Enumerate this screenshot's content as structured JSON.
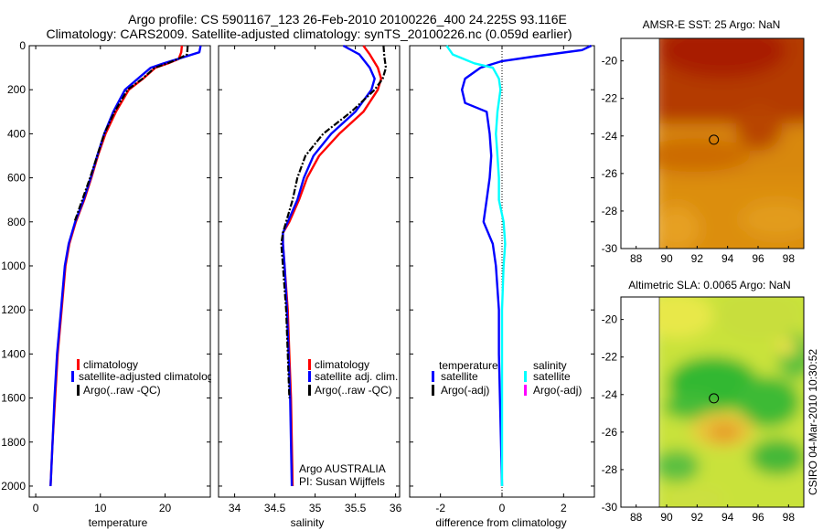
{
  "header": {
    "line1": "Argo profile: CS 5901167_123 26-Feb-2010 20100226_400 24.225S 93.116E",
    "line2": "Climatology: CARS2009. Satellite-adjusted climatology: synTS_20100226.nc (0.059d earlier)"
  },
  "footer": {
    "credit": "CSIRO 04-Mar-2010 10:30:52"
  },
  "colors": {
    "climatology": "#ff0000",
    "satellite": "#0000ff",
    "argo": "#000000",
    "salinity_satellite": "#00ffff",
    "salinity_argo": "#ff00ff"
  },
  "chart_data": [
    {
      "type": "line",
      "panel": "temperature",
      "xlabel": "temperature",
      "ylabel": "",
      "xlim": [
        -1,
        27
      ],
      "ylim": [
        2050,
        0
      ],
      "xticks": [
        0,
        10,
        20
      ],
      "yticks": [
        0,
        200,
        400,
        600,
        800,
        1000,
        1200,
        1400,
        1600,
        1800,
        2000
      ],
      "legend": [
        "climatology",
        "satellite-adjusted climatology",
        "Argo(..raw -QC)"
      ],
      "series": [
        {
          "name": "climatology",
          "color": "#ff0000",
          "points": [
            [
              22.6,
              0
            ],
            [
              22.5,
              30
            ],
            [
              22.1,
              60
            ],
            [
              20.5,
              80
            ],
            [
              18.5,
              100
            ],
            [
              16.6,
              150
            ],
            [
              14.4,
              200
            ],
            [
              12.4,
              300
            ],
            [
              10.8,
              400
            ],
            [
              9.6,
              500
            ],
            [
              8.6,
              600
            ],
            [
              7.5,
              700
            ],
            [
              6.2,
              800
            ],
            [
              5.2,
              900
            ],
            [
              4.6,
              1000
            ],
            [
              4.0,
              1200
            ],
            [
              3.4,
              1400
            ],
            [
              3.0,
              1600
            ],
            [
              2.6,
              1800
            ],
            [
              2.3,
              2000
            ]
          ]
        },
        {
          "name": "satellite-adjusted climatology",
          "color": "#0000ff",
          "points": [
            [
              25.5,
              0
            ],
            [
              25.3,
              30
            ],
            [
              22.0,
              60
            ],
            [
              19.8,
              80
            ],
            [
              17.8,
              100
            ],
            [
              15.8,
              150
            ],
            [
              13.8,
              200
            ],
            [
              12.0,
              300
            ],
            [
              10.6,
              400
            ],
            [
              9.5,
              500
            ],
            [
              8.5,
              600
            ],
            [
              7.4,
              700
            ],
            [
              6.1,
              800
            ],
            [
              5.1,
              900
            ],
            [
              4.5,
              1000
            ],
            [
              3.9,
              1200
            ],
            [
              3.3,
              1400
            ],
            [
              2.9,
              1600
            ],
            [
              2.6,
              1800
            ],
            [
              2.3,
              2000
            ]
          ]
        },
        {
          "name": "Argo(..raw -QC)",
          "color": "#000000",
          "dashed": true,
          "points": [
            [
              23.5,
              0
            ],
            [
              23.4,
              40
            ],
            [
              22.0,
              60
            ],
            [
              20.4,
              80
            ],
            [
              18.4,
              100
            ],
            [
              16.5,
              150
            ],
            [
              14.2,
              200
            ],
            [
              12.2,
              300
            ],
            [
              10.6,
              400
            ],
            [
              9.5,
              500
            ],
            [
              8.4,
              600
            ],
            [
              7.2,
              700
            ],
            [
              6.0,
              800
            ]
          ]
        }
      ]
    },
    {
      "type": "line",
      "panel": "salinity",
      "xlabel": "salinity",
      "ylabel": "",
      "xlim": [
        33.8,
        36.05
      ],
      "ylim": [
        2050,
        0
      ],
      "xticks": [
        34,
        34.5,
        35,
        35.5,
        36
      ],
      "legend": [
        "climatology",
        "satellite adj. clim.",
        "Argo(..raw -QC)"
      ],
      "annotation": [
        "Argo AUSTRALIA",
        "PI: Susan Wijffels"
      ],
      "series": [
        {
          "name": "climatology",
          "color": "#ff0000",
          "points": [
            [
              35.6,
              0
            ],
            [
              35.68,
              40
            ],
            [
              35.78,
              100
            ],
            [
              35.82,
              150
            ],
            [
              35.78,
              200
            ],
            [
              35.6,
              300
            ],
            [
              35.3,
              400
            ],
            [
              35.05,
              500
            ],
            [
              34.9,
              600
            ],
            [
              34.8,
              700
            ],
            [
              34.68,
              800
            ],
            [
              34.6,
              850
            ],
            [
              34.6,
              900
            ],
            [
              34.62,
              1000
            ],
            [
              34.66,
              1200
            ],
            [
              34.68,
              1400
            ],
            [
              34.7,
              1600
            ],
            [
              34.71,
              1800
            ],
            [
              34.72,
              2000
            ]
          ]
        },
        {
          "name": "satellite adj. clim.",
          "color": "#0000ff",
          "points": [
            [
              35.35,
              0
            ],
            [
              35.55,
              40
            ],
            [
              35.68,
              100
            ],
            [
              35.74,
              150
            ],
            [
              35.7,
              200
            ],
            [
              35.5,
              300
            ],
            [
              35.2,
              400
            ],
            [
              34.98,
              500
            ],
            [
              34.86,
              600
            ],
            [
              34.78,
              700
            ],
            [
              34.66,
              800
            ],
            [
              34.6,
              850
            ],
            [
              34.6,
              900
            ],
            [
              34.62,
              1000
            ],
            [
              34.65,
              1200
            ],
            [
              34.67,
              1400
            ],
            [
              34.69,
              1600
            ],
            [
              34.7,
              1800
            ],
            [
              34.71,
              2000
            ]
          ]
        },
        {
          "name": "Argo(..raw -QC)",
          "color": "#000000",
          "dashed": true,
          "points": [
            [
              35.85,
              0
            ],
            [
              35.86,
              50
            ],
            [
              35.88,
              100
            ],
            [
              35.84,
              150
            ],
            [
              35.74,
              200
            ],
            [
              35.45,
              300
            ],
            [
              35.1,
              400
            ],
            [
              34.88,
              500
            ],
            [
              34.78,
              600
            ],
            [
              34.72,
              700
            ],
            [
              34.64,
              800
            ],
            [
              34.6,
              850
            ],
            [
              34.58,
              900
            ],
            [
              34.6,
              1000
            ],
            [
              34.64,
              1200
            ],
            [
              34.66,
              1400
            ],
            [
              34.68,
              1600
            ]
          ]
        }
      ]
    },
    {
      "type": "line",
      "panel": "difference",
      "xlabel": "difference from climatology",
      "ylabel": "",
      "xlim": [
        -3,
        3
      ],
      "ylim": [
        2050,
        0
      ],
      "xticks": [
        -2,
        0,
        2
      ],
      "legend_groups": [
        {
          "title": "temperature",
          "entries": [
            "satellite",
            "Argo(-adj)"
          ]
        },
        {
          "title": "salinity",
          "entries": [
            "satellite",
            "Argo(-adj)"
          ]
        }
      ],
      "series": [
        {
          "name": "temperature satellite",
          "color": "#0000ff",
          "points": [
            [
              2.9,
              0
            ],
            [
              2.6,
              20
            ],
            [
              1.0,
              50
            ],
            [
              0.0,
              70
            ],
            [
              -0.7,
              100
            ],
            [
              -1.2,
              150
            ],
            [
              -1.3,
              200
            ],
            [
              -1.2,
              260
            ],
            [
              -0.5,
              300
            ],
            [
              -0.4,
              400
            ],
            [
              -0.35,
              500
            ],
            [
              -0.4,
              600
            ],
            [
              -0.5,
              700
            ],
            [
              -0.6,
              800
            ],
            [
              -0.3,
              900
            ],
            [
              -0.2,
              1000
            ],
            [
              -0.1,
              1200
            ],
            [
              -0.1,
              1400
            ],
            [
              0,
              2000
            ]
          ]
        },
        {
          "name": "salinity satellite",
          "color": "#00ffff",
          "points": [
            [
              -1.8,
              0
            ],
            [
              -1.6,
              40
            ],
            [
              -0.9,
              80
            ],
            [
              -0.3,
              100
            ],
            [
              -0.1,
              150
            ],
            [
              -0.05,
              200
            ],
            [
              -0.15,
              300
            ],
            [
              -0.2,
              400
            ],
            [
              -0.15,
              500
            ],
            [
              -0.1,
              600
            ],
            [
              -0.1,
              700
            ],
            [
              0.05,
              800
            ],
            [
              0.1,
              900
            ],
            [
              0.05,
              1000
            ],
            [
              0,
              1200
            ],
            [
              0,
              2000
            ]
          ]
        }
      ]
    },
    {
      "type": "heatmap",
      "panel": "sst-map",
      "title": "AMSR-E SST: 25 Argo: NaN",
      "xlim": [
        87,
        99
      ],
      "ylim": [
        -30,
        -18.8
      ],
      "xticks": [
        88,
        90,
        92,
        94,
        96,
        98
      ],
      "yticks": [
        -30,
        -28,
        -26,
        -24,
        -22,
        -20
      ],
      "marker": [
        93.1,
        -24.2
      ]
    },
    {
      "type": "heatmap",
      "panel": "sla-map",
      "title": "Altimetric SLA: 0.0065 Argo: NaN",
      "xlim": [
        87,
        99
      ],
      "ylim": [
        -30,
        -18.8
      ],
      "xticks": [
        88,
        90,
        92,
        94,
        96,
        98
      ],
      "yticks": [
        -30,
        -28,
        -26,
        -24,
        -22,
        -20
      ],
      "marker": [
        93.1,
        -24.2
      ]
    }
  ]
}
